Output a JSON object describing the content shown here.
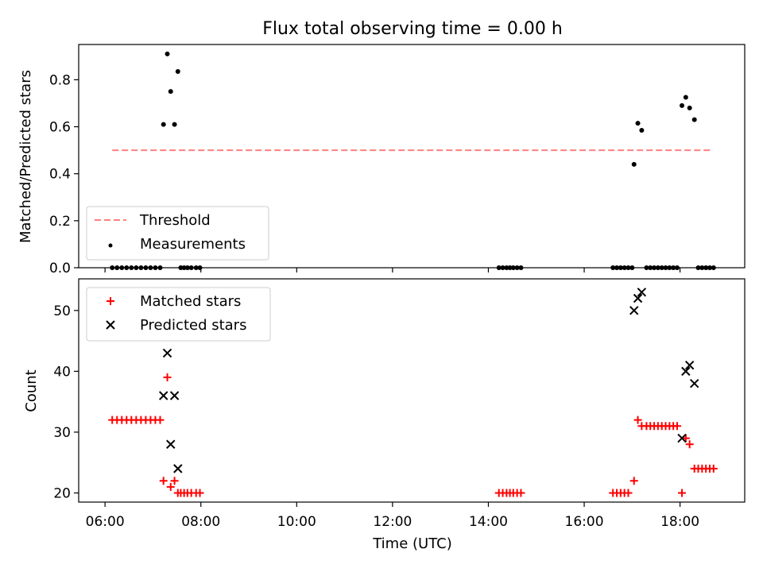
{
  "chart_data": [
    {
      "type": "scatter",
      "title": "Flux total observing time = 0.00 h",
      "xlabel": "",
      "ylabel": "Matched/Predicted stars",
      "xlim_hours": [
        5.45,
        19.35
      ],
      "ylim": [
        0,
        0.95
      ],
      "yticks": [
        0.0,
        0.2,
        0.4,
        0.6,
        0.8
      ],
      "ytick_labels": [
        "0.0",
        "0.2",
        "0.4",
        "0.6",
        "0.8"
      ],
      "xticks_hours": [
        6,
        8,
        10,
        12,
        14,
        16,
        18
      ],
      "legend_position": "lower-left",
      "threshold": {
        "name": "Threshold",
        "color": "#ff8080",
        "style": "dashed",
        "value": 0.5,
        "x_range_hours": [
          6.15,
          18.65
        ]
      },
      "series": [
        {
          "name": "Measurements",
          "marker": "dot",
          "color": "#000000",
          "x_hours": [
            6.15,
            6.25,
            6.35,
            6.45,
            6.55,
            6.65,
            6.75,
            6.85,
            6.95,
            7.05,
            7.15,
            7.22,
            7.3,
            7.37,
            7.45,
            7.52,
            7.58,
            7.65,
            7.72,
            7.8,
            7.9,
            7.98,
            14.22,
            14.3,
            14.38,
            14.45,
            14.52,
            14.6,
            14.68,
            16.6,
            16.68,
            16.76,
            16.84,
            16.92,
            17.0,
            17.04,
            17.12,
            17.2,
            17.3,
            17.38,
            17.46,
            17.54,
            17.62,
            17.7,
            17.78,
            17.86,
            17.94,
            18.04,
            18.12,
            18.2,
            18.3,
            18.38,
            18.46,
            18.54,
            18.62,
            18.7
          ],
          "y": [
            0,
            0,
            0,
            0,
            0,
            0,
            0,
            0,
            0,
            0,
            0,
            0.61,
            0.91,
            0.75,
            0.61,
            0.835,
            0,
            0,
            0,
            0,
            0,
            0,
            0,
            0,
            0,
            0,
            0,
            0,
            0,
            0,
            0,
            0,
            0,
            0,
            0,
            0.44,
            0.615,
            0.585,
            0,
            0,
            0,
            0,
            0,
            0,
            0,
            0,
            0,
            0.69,
            0.725,
            0.68,
            0.63,
            0,
            0,
            0,
            0,
            0
          ]
        }
      ]
    },
    {
      "type": "scatter",
      "title": "",
      "xlabel": "Time (UTC)",
      "ylabel": "Count",
      "xlim_hours": [
        5.45,
        19.35
      ],
      "ylim": [
        18.5,
        55.2
      ],
      "yticks": [
        20,
        30,
        40,
        50
      ],
      "ytick_labels": [
        "20",
        "30",
        "40",
        "50"
      ],
      "xticks_hours": [
        6,
        8,
        10,
        12,
        14,
        16,
        18
      ],
      "xtick_labels": [
        "06:00",
        "08:00",
        "10:00",
        "12:00",
        "14:00",
        "16:00",
        "18:00"
      ],
      "legend_position": "upper-left",
      "series": [
        {
          "name": "Matched stars",
          "marker": "plus",
          "color": "#ff0000",
          "x_hours": [
            6.15,
            6.25,
            6.35,
            6.45,
            6.55,
            6.65,
            6.75,
            6.85,
            6.95,
            7.05,
            7.15,
            7.22,
            7.3,
            7.37,
            7.45,
            7.52,
            7.58,
            7.65,
            7.72,
            7.8,
            7.9,
            7.98,
            14.22,
            14.3,
            14.38,
            14.45,
            14.52,
            14.6,
            14.68,
            16.6,
            16.68,
            16.76,
            16.84,
            16.92,
            17.04,
            17.12,
            17.2,
            17.3,
            17.38,
            17.46,
            17.54,
            17.62,
            17.7,
            17.78,
            17.86,
            17.94,
            18.04,
            18.12,
            18.2,
            18.3,
            18.38,
            18.46,
            18.54,
            18.62,
            18.7
          ],
          "y": [
            32,
            32,
            32,
            32,
            32,
            32,
            32,
            32,
            32,
            32,
            32,
            22,
            39,
            21,
            22,
            20,
            20,
            20,
            20,
            20,
            20,
            20,
            20,
            20,
            20,
            20,
            20,
            20,
            20,
            20,
            20,
            20,
            20,
            20,
            22,
            32,
            31,
            31,
            31,
            31,
            31,
            31,
            31,
            31,
            31,
            31,
            20,
            29,
            28,
            24,
            24,
            24,
            24,
            24,
            24
          ]
        },
        {
          "name": "Predicted stars",
          "marker": "x",
          "color": "#000000",
          "x_hours": [
            7.22,
            7.3,
            7.37,
            7.45,
            7.52,
            17.04,
            17.12,
            17.2,
            18.04,
            18.12,
            18.2,
            18.3
          ],
          "y": [
            36,
            43,
            28,
            36,
            24,
            50,
            52,
            53,
            29,
            40,
            41,
            38
          ]
        }
      ]
    }
  ]
}
